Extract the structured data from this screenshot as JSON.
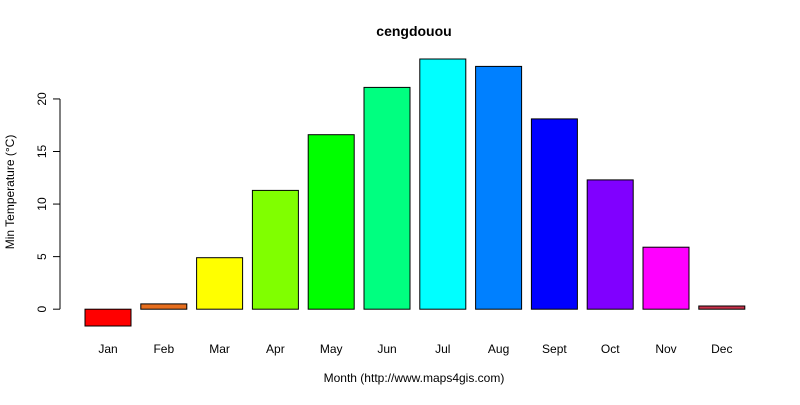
{
  "chart_data": {
    "type": "bar",
    "title": "cengdouou",
    "xlabel": "Month (http://www.maps4gis.com)",
    "ylabel": "Min Temperature (°C)",
    "categories": [
      "Jan",
      "Feb",
      "Mar",
      "Apr",
      "May",
      "Jun",
      "Jul",
      "Aug",
      "Sept",
      "Oct",
      "Nov",
      "Dec"
    ],
    "values": [
      -1.6,
      0.5,
      4.9,
      11.3,
      16.6,
      21.1,
      23.8,
      23.1,
      18.1,
      12.3,
      5.9,
      0.3
    ],
    "colors": [
      "#ff0000",
      "#e66e1e",
      "#ffff00",
      "#80ff00",
      "#00ff00",
      "#00ff80",
      "#00ffff",
      "#0080ff",
      "#0000ff",
      "#8000ff",
      "#ff00ff",
      "#c8324b"
    ],
    "yticks": [
      0,
      5,
      10,
      15,
      20
    ],
    "ylim": [
      -1.6,
      23.8
    ],
    "grid": false,
    "legend": "none"
  }
}
